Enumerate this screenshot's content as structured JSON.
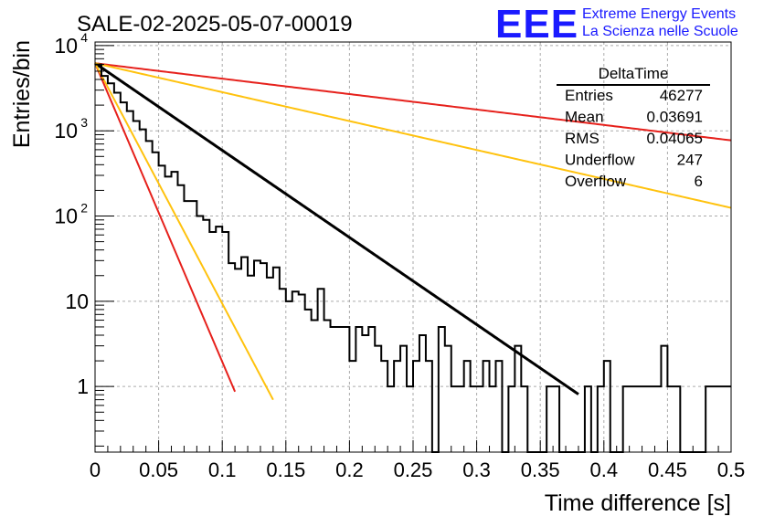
{
  "chart_data": {
    "type": "line",
    "title": "SALE-02-2025-05-07-00019",
    "xlabel": "Time difference [s]",
    "ylabel": "Entries/bin",
    "xlim": [
      0,
      0.5
    ],
    "ylim": [
      0.17,
      11000
    ],
    "y_scale": "log",
    "grid": true,
    "x_ticks": [
      "0",
      "0.05",
      "0.1",
      "0.15",
      "0.2",
      "0.25",
      "0.3",
      "0.35",
      "0.4",
      "0.45",
      "0.5"
    ],
    "y_ticks": [
      {
        "base": "10",
        "exp": "4"
      },
      {
        "base": "10",
        "exp": "3"
      },
      {
        "base": "10",
        "exp": "2"
      },
      {
        "base": "10",
        "exp": ""
      },
      {
        "base": "1",
        "exp": ""
      }
    ],
    "logo": {
      "text": "EEE",
      "line1": "Extreme Energy Events",
      "line2": "La Scienza nelle Scuole",
      "color": "#1a1aff"
    },
    "stats_box": {
      "title": "DeltaTime",
      "rows": [
        {
          "label": "Entries",
          "value": "46277"
        },
        {
          "label": "Mean",
          "value": "0.03691"
        },
        {
          "label": "RMS",
          "value": "0.04065"
        },
        {
          "label": "Underflow",
          "value": "247"
        },
        {
          "label": "Overflow",
          "value": "6"
        }
      ]
    },
    "histogram": {
      "color": "#000000",
      "bin_width": 0.005,
      "bin_start": 0,
      "values": [
        6000,
        4400,
        3600,
        2800,
        2150,
        1700,
        1300,
        1040,
        760,
        560,
        390,
        290,
        330,
        230,
        150,
        150,
        100,
        90,
        65,
        75,
        65,
        28,
        24,
        33,
        20,
        30,
        28,
        19,
        25,
        14,
        10,
        13,
        12,
        8,
        6,
        14,
        6,
        5,
        5,
        5,
        2,
        5,
        4,
        5,
        3,
        2,
        1,
        2,
        3,
        1,
        2,
        4,
        2,
        0,
        5,
        3,
        1,
        1,
        2,
        1,
        1,
        2,
        1,
        2,
        0,
        1,
        3,
        1,
        0,
        0,
        0,
        1,
        1,
        0,
        0,
        0,
        0,
        1,
        0,
        1,
        2,
        0,
        0,
        1,
        1,
        1,
        1,
        1,
        1,
        3,
        1,
        1,
        0,
        0,
        0,
        0,
        1,
        1,
        1,
        1
      ]
    },
    "series": [
      {
        "color": "#000000",
        "amplitude": 6200,
        "decay_constant": 0.0425,
        "x_end": 0.38
      },
      {
        "color": "#e6211c",
        "amplitude": 6200,
        "decay_constant": 0.24,
        "x_end": 0.5
      },
      {
        "color": "#ffc20e",
        "amplitude": 6200,
        "decay_constant": 0.128,
        "x_end": 0.5
      },
      {
        "color": "#e6211c",
        "amplitude": 6200,
        "decay_constant": 0.0124,
        "x_end": 0.11
      },
      {
        "color": "#ffc20e",
        "amplitude": 6200,
        "decay_constant": 0.0154,
        "x_end": 0.14
      }
    ]
  }
}
